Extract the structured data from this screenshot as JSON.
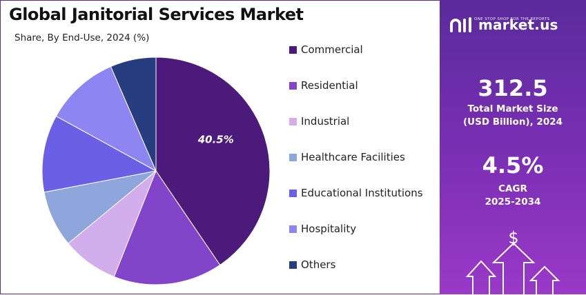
{
  "header": {
    "title": "Global Janitorial Services Market",
    "subtitle": "Share, By End-Use, 2024 (%)"
  },
  "brand": {
    "name": "market.us",
    "tagline": "ONE STOP SHOP FOR THE REPORTS"
  },
  "stats": {
    "market_size_value": "312.5",
    "market_size_label_line1": "Total Market Size",
    "market_size_label_line2": "(USD Billion), 2024",
    "cagr_value": "4.5%",
    "cagr_label_line1": "CAGR",
    "cagr_label_line2": "2025-2034"
  },
  "icons": [
    "dollar-icon",
    "up-arrow-icon"
  ],
  "chart_data": {
    "type": "pie",
    "title": "Global Janitorial Services Market",
    "subtitle": "Share, By End-Use, 2024 (%)",
    "legend_position": "right",
    "slices": [
      {
        "name": "Commercial",
        "value": 40.5,
        "color": "#4b1a7a",
        "label": "40.5%"
      },
      {
        "name": "Residential",
        "value": 15.5,
        "color": "#8244c9",
        "label": ""
      },
      {
        "name": "Industrial",
        "value": 8.0,
        "color": "#d2aeec",
        "label": ""
      },
      {
        "name": "Healthcare Facilities",
        "value": 8.0,
        "color": "#8ea6dc",
        "label": ""
      },
      {
        "name": "Educational Institutions",
        "value": 11.0,
        "color": "#6a60e6",
        "label": ""
      },
      {
        "name": "Hospitality",
        "value": 10.5,
        "color": "#8d85f2",
        "label": ""
      },
      {
        "name": "Others",
        "value": 6.5,
        "color": "#283c80",
        "label": ""
      }
    ]
  }
}
